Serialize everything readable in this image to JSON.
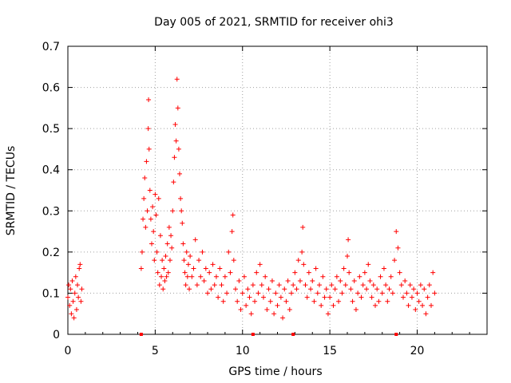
{
  "chart_data": {
    "type": "scatter",
    "title": "Day 005 of 2021, SRMTID for receiver ohi3",
    "xlabel": "GPS time / hours",
    "ylabel": "SRMTID / TECUs",
    "xlim": [
      0,
      24
    ],
    "ylim": [
      0,
      0.7
    ],
    "xticks": [
      0,
      5,
      10,
      15,
      20
    ],
    "xtick_labels": [
      "0",
      "5",
      "10",
      "15",
      "20"
    ],
    "yticks": [
      0,
      0.1,
      0.2,
      0.3,
      0.4,
      0.5,
      0.6,
      0.7
    ],
    "ytick_labels": [
      "0",
      "0.1",
      "0.2",
      "0.3",
      "0.4",
      "0.5",
      "0.6",
      "0.7"
    ],
    "grid": true,
    "marker": "plus",
    "marker_color": "#ff0000",
    "baseline_markers_x": [
      4.2,
      10.6,
      12.9,
      18.8
    ],
    "series": [
      {
        "name": "ohi3",
        "points": [
          [
            0.0,
            0.09
          ],
          [
            0.05,
            0.12
          ],
          [
            0.1,
            0.07
          ],
          [
            0.15,
            0.11
          ],
          [
            0.2,
            0.05
          ],
          [
            0.25,
            0.13
          ],
          [
            0.3,
            0.08
          ],
          [
            0.35,
            0.04
          ],
          [
            0.4,
            0.1
          ],
          [
            0.45,
            0.14
          ],
          [
            0.5,
            0.06
          ],
          [
            0.55,
            0.12
          ],
          [
            0.6,
            0.09
          ],
          [
            0.65,
            0.16
          ],
          [
            0.7,
            0.17
          ],
          [
            0.75,
            0.08
          ],
          [
            0.8,
            0.11
          ],
          [
            4.2,
            0.16
          ],
          [
            4.25,
            0.2
          ],
          [
            4.3,
            0.28
          ],
          [
            4.35,
            0.33
          ],
          [
            4.4,
            0.38
          ],
          [
            4.45,
            0.26
          ],
          [
            4.5,
            0.42
          ],
          [
            4.55,
            0.3
          ],
          [
            4.6,
            0.5
          ],
          [
            4.62,
            0.57
          ],
          [
            4.65,
            0.45
          ],
          [
            4.7,
            0.35
          ],
          [
            4.75,
            0.28
          ],
          [
            4.8,
            0.22
          ],
          [
            4.85,
            0.31
          ],
          [
            4.9,
            0.25
          ],
          [
            4.95,
            0.18
          ],
          [
            5.0,
            0.34
          ],
          [
            5.05,
            0.29
          ],
          [
            5.1,
            0.2
          ],
          [
            5.15,
            0.15
          ],
          [
            5.2,
            0.33
          ],
          [
            5.25,
            0.12
          ],
          [
            5.3,
            0.24
          ],
          [
            5.35,
            0.14
          ],
          [
            5.4,
            0.18
          ],
          [
            5.45,
            0.11
          ],
          [
            5.5,
            0.16
          ],
          [
            5.55,
            0.13
          ],
          [
            5.6,
            0.19
          ],
          [
            5.65,
            0.14
          ],
          [
            5.7,
            0.22
          ],
          [
            5.75,
            0.15
          ],
          [
            5.8,
            0.26
          ],
          [
            5.85,
            0.18
          ],
          [
            5.9,
            0.24
          ],
          [
            5.95,
            0.21
          ],
          [
            6.0,
            0.3
          ],
          [
            6.05,
            0.37
          ],
          [
            6.1,
            0.43
          ],
          [
            6.15,
            0.51
          ],
          [
            6.2,
            0.47
          ],
          [
            6.25,
            0.62
          ],
          [
            6.3,
            0.55
          ],
          [
            6.35,
            0.45
          ],
          [
            6.4,
            0.39
          ],
          [
            6.45,
            0.33
          ],
          [
            6.5,
            0.3
          ],
          [
            6.55,
            0.27
          ],
          [
            6.6,
            0.22
          ],
          [
            6.65,
            0.18
          ],
          [
            6.7,
            0.15
          ],
          [
            6.75,
            0.12
          ],
          [
            6.8,
            0.2
          ],
          [
            6.85,
            0.14
          ],
          [
            6.9,
            0.17
          ],
          [
            6.95,
            0.11
          ],
          [
            7.0,
            0.19
          ],
          [
            7.1,
            0.14
          ],
          [
            7.2,
            0.16
          ],
          [
            7.3,
            0.23
          ],
          [
            7.4,
            0.12
          ],
          [
            7.5,
            0.18
          ],
          [
            7.6,
            0.14
          ],
          [
            7.7,
            0.2
          ],
          [
            7.8,
            0.13
          ],
          [
            7.9,
            0.16
          ],
          [
            8.0,
            0.1
          ],
          [
            8.1,
            0.15
          ],
          [
            8.2,
            0.11
          ],
          [
            8.3,
            0.17
          ],
          [
            8.4,
            0.12
          ],
          [
            8.5,
            0.14
          ],
          [
            8.6,
            0.09
          ],
          [
            8.7,
            0.16
          ],
          [
            8.8,
            0.12
          ],
          [
            8.9,
            0.08
          ],
          [
            9.0,
            0.14
          ],
          [
            9.1,
            0.1
          ],
          [
            9.2,
            0.2
          ],
          [
            9.3,
            0.15
          ],
          [
            9.4,
            0.25
          ],
          [
            9.45,
            0.29
          ],
          [
            9.5,
            0.18
          ],
          [
            9.6,
            0.11
          ],
          [
            9.7,
            0.08
          ],
          [
            9.8,
            0.13
          ],
          [
            9.9,
            0.06
          ],
          [
            10.0,
            0.1
          ],
          [
            10.1,
            0.14
          ],
          [
            10.2,
            0.07
          ],
          [
            10.3,
            0.11
          ],
          [
            10.4,
            0.09
          ],
          [
            10.5,
            0.05
          ],
          [
            10.6,
            0.12
          ],
          [
            10.7,
            0.08
          ],
          [
            10.8,
            0.15
          ],
          [
            10.9,
            0.1
          ],
          [
            11.0,
            0.17
          ],
          [
            11.1,
            0.12
          ],
          [
            11.2,
            0.09
          ],
          [
            11.3,
            0.14
          ],
          [
            11.4,
            0.06
          ],
          [
            11.5,
            0.11
          ],
          [
            11.6,
            0.08
          ],
          [
            11.7,
            0.13
          ],
          [
            11.8,
            0.05
          ],
          [
            11.9,
            0.1
          ],
          [
            12.0,
            0.07
          ],
          [
            12.1,
            0.12
          ],
          [
            12.2,
            0.09
          ],
          [
            12.3,
            0.04
          ],
          [
            12.4,
            0.11
          ],
          [
            12.5,
            0.08
          ],
          [
            12.6,
            0.13
          ],
          [
            12.7,
            0.06
          ],
          [
            12.8,
            0.1
          ],
          [
            12.9,
            0.12
          ],
          [
            13.0,
            0.15
          ],
          [
            13.1,
            0.11
          ],
          [
            13.2,
            0.18
          ],
          [
            13.3,
            0.13
          ],
          [
            13.4,
            0.2
          ],
          [
            13.45,
            0.26
          ],
          [
            13.5,
            0.17
          ],
          [
            13.6,
            0.12
          ],
          [
            13.7,
            0.09
          ],
          [
            13.8,
            0.15
          ],
          [
            13.9,
            0.11
          ],
          [
            14.0,
            0.13
          ],
          [
            14.1,
            0.08
          ],
          [
            14.2,
            0.16
          ],
          [
            14.3,
            0.1
          ],
          [
            14.4,
            0.12
          ],
          [
            14.5,
            0.07
          ],
          [
            14.6,
            0.14
          ],
          [
            14.7,
            0.09
          ],
          [
            14.8,
            0.11
          ],
          [
            14.9,
            0.05
          ],
          [
            15.0,
            0.09
          ],
          [
            15.1,
            0.12
          ],
          [
            15.2,
            0.07
          ],
          [
            15.3,
            0.11
          ],
          [
            15.4,
            0.14
          ],
          [
            15.5,
            0.08
          ],
          [
            15.6,
            0.13
          ],
          [
            15.7,
            0.1
          ],
          [
            15.8,
            0.16
          ],
          [
            15.9,
            0.12
          ],
          [
            16.0,
            0.19
          ],
          [
            16.05,
            0.23
          ],
          [
            16.1,
            0.15
          ],
          [
            16.2,
            0.11
          ],
          [
            16.3,
            0.08
          ],
          [
            16.4,
            0.13
          ],
          [
            16.5,
            0.06
          ],
          [
            16.6,
            0.1
          ],
          [
            16.7,
            0.14
          ],
          [
            16.8,
            0.09
          ],
          [
            16.9,
            0.12
          ],
          [
            17.0,
            0.15
          ],
          [
            17.1,
            0.11
          ],
          [
            17.2,
            0.17
          ],
          [
            17.3,
            0.13
          ],
          [
            17.4,
            0.09
          ],
          [
            17.5,
            0.12
          ],
          [
            17.6,
            0.07
          ],
          [
            17.7,
            0.11
          ],
          [
            17.8,
            0.08
          ],
          [
            17.9,
            0.14
          ],
          [
            18.0,
            0.1
          ],
          [
            18.1,
            0.16
          ],
          [
            18.2,
            0.12
          ],
          [
            18.3,
            0.08
          ],
          [
            18.4,
            0.11
          ],
          [
            18.5,
            0.14
          ],
          [
            18.6,
            0.1
          ],
          [
            18.7,
            0.18
          ],
          [
            18.8,
            0.25
          ],
          [
            18.9,
            0.21
          ],
          [
            19.0,
            0.15
          ],
          [
            19.1,
            0.12
          ],
          [
            19.2,
            0.09
          ],
          [
            19.3,
            0.13
          ],
          [
            19.4,
            0.1
          ],
          [
            19.5,
            0.07
          ],
          [
            19.6,
            0.12
          ],
          [
            19.7,
            0.09
          ],
          [
            19.8,
            0.11
          ],
          [
            19.9,
            0.06
          ],
          [
            20.0,
            0.1
          ],
          [
            20.1,
            0.08
          ],
          [
            20.2,
            0.12
          ],
          [
            20.3,
            0.07
          ],
          [
            20.4,
            0.11
          ],
          [
            20.5,
            0.05
          ],
          [
            20.6,
            0.09
          ],
          [
            20.7,
            0.12
          ],
          [
            20.8,
            0.07
          ],
          [
            20.9,
            0.15
          ],
          [
            21.0,
            0.1
          ]
        ]
      }
    ]
  }
}
